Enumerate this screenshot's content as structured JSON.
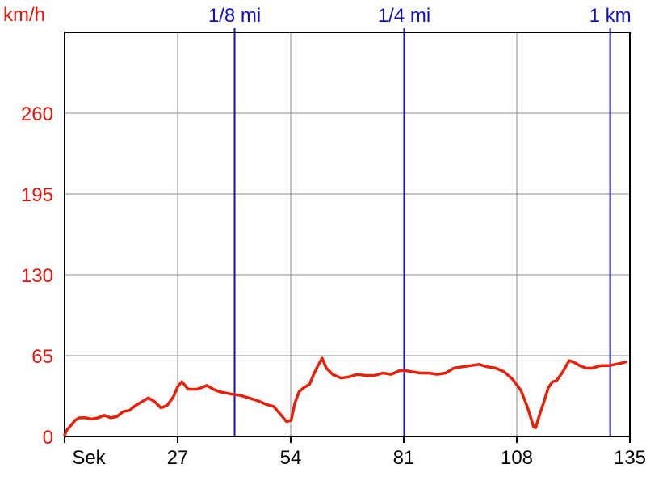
{
  "chart_data": {
    "type": "line",
    "title": "",
    "ylabel": "km/h",
    "xlabel": "Sek",
    "xlim": [
      0,
      135
    ],
    "ylim": [
      0,
      325
    ],
    "y_ticks": [
      {
        "value": 0,
        "label": "0"
      },
      {
        "value": 65,
        "label": "65"
      },
      {
        "value": 130,
        "label": "130"
      },
      {
        "value": 195,
        "label": "195"
      },
      {
        "value": 260,
        "label": "260"
      }
    ],
    "x_ticks": [
      {
        "value": 27,
        "label": "27"
      },
      {
        "value": 54,
        "label": "54"
      },
      {
        "value": 81,
        "label": "81"
      },
      {
        "value": 108,
        "label": "108"
      },
      {
        "value": 135,
        "label": "135"
      }
    ],
    "grid": true,
    "distance_markers": [
      {
        "label": "1/8 mi",
        "x": 40.6
      },
      {
        "label": "1/4 mi",
        "x": 81.1
      },
      {
        "label": "1 km",
        "x": 130.3
      }
    ],
    "series": [
      {
        "color": "#e8200a",
        "x": [
          0,
          0.5,
          1.5,
          2.5,
          3.5,
          5,
          6.5,
          8,
          9.5,
          11,
          12.5,
          14,
          15.5,
          17,
          18.5,
          20,
          21.5,
          23,
          24.5,
          26,
          27,
          28,
          29.5,
          30.5,
          31.5,
          32.5,
          34,
          35.5,
          37,
          38.5,
          40,
          42,
          44,
          46,
          48,
          50,
          51.5,
          53,
          54.1,
          55,
          56,
          57,
          58.5,
          59.5,
          60.5,
          61.5,
          62.5,
          64,
          66,
          68,
          70,
          72,
          74,
          76,
          78,
          80,
          81.5,
          83,
          85,
          87,
          89,
          91,
          93,
          95,
          97,
          99,
          101,
          103,
          105,
          107,
          109,
          110.5,
          112,
          112.5,
          113.5,
          114.5,
          115.5,
          116.5,
          117.5,
          119,
          120.5,
          121.5,
          123,
          124.5,
          126,
          128,
          130,
          131.5,
          133,
          134
        ],
        "y": [
          1,
          5,
          9,
          13,
          15,
          15,
          14,
          15,
          17,
          15,
          16,
          20,
          21,
          25,
          28,
          31,
          28,
          23,
          25,
          32,
          40,
          44,
          38,
          38,
          38,
          39,
          41,
          38,
          36,
          35,
          34,
          33,
          31,
          29,
          26,
          24,
          18,
          12,
          13,
          27,
          36,
          39,
          42,
          50,
          57,
          63,
          55,
          50,
          47,
          48,
          50,
          49,
          49,
          51,
          50,
          53,
          53,
          52,
          51,
          51,
          50,
          51,
          55,
          56,
          57,
          58,
          56,
          55,
          52,
          46,
          37,
          24,
          8,
          7,
          18,
          28,
          39,
          44,
          45,
          52,
          61,
          60,
          57,
          55,
          55,
          57,
          57,
          58,
          59,
          60
        ]
      }
    ]
  }
}
